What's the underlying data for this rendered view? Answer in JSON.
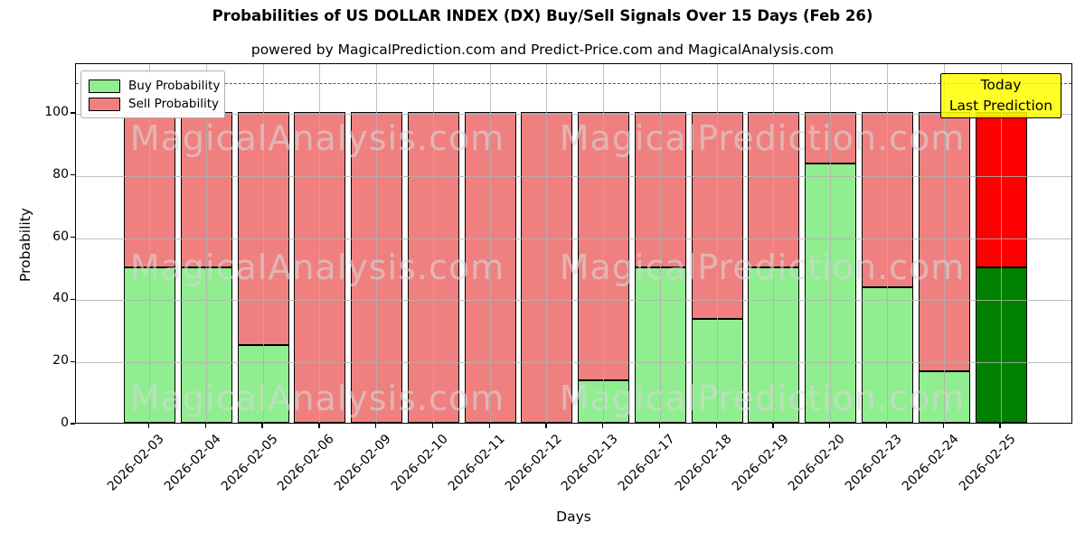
{
  "title": "Probabilities of US DOLLAR INDEX (DX) Buy/Sell Signals Over 15 Days (Feb 26)",
  "subtitle": "powered by MagicalPrediction.com and Predict-Price.com and MagicalAnalysis.com",
  "watermarks": {
    "left_text": "MagicalAnalysis.com",
    "right_text": "MagicalPrediction.com"
  },
  "legend": [
    {
      "label": "Buy Probability",
      "color": "#90ee90"
    },
    {
      "label": "Sell Probability",
      "color": "#f08080"
    }
  ],
  "annotation": {
    "line1": "Today",
    "line2": "Last Prediction",
    "bg_color": "#ffff00"
  },
  "chart_data": {
    "type": "bar",
    "stacked": true,
    "title": "Probabilities of US DOLLAR INDEX (DX) Buy/Sell Signals Over 15 Days (Feb 26)",
    "xlabel": "Days",
    "ylabel": "Probability",
    "ylim": [
      0,
      116
    ],
    "yticks": [
      0,
      20,
      40,
      60,
      80,
      100
    ],
    "grid": true,
    "dashed_line_y": 110,
    "legend_position": "upper left",
    "categories": [
      "2026-02-03",
      "2026-02-04",
      "2026-02-05",
      "2026-02-06",
      "2026-02-09",
      "2026-02-10",
      "2026-02-11",
      "2026-02-12",
      "2026-02-13",
      "2026-02-17",
      "2026-02-18",
      "2026-02-19",
      "2026-02-20",
      "2026-02-23",
      "2026-02-24",
      "2026-02-25"
    ],
    "series": [
      {
        "name": "Buy Probability",
        "color": "#90ee90",
        "today_color": "#008000",
        "values": [
          50,
          50,
          25,
          0,
          0,
          0,
          0,
          0,
          13.6,
          50,
          33.3,
          50,
          83.3,
          43.7,
          16.5,
          50
        ]
      },
      {
        "name": "Sell Probability",
        "color": "#f08080",
        "today_color": "#ff0000",
        "values": [
          50,
          50,
          75,
          100,
          100,
          100,
          100,
          100,
          86.4,
          50,
          66.7,
          50,
          16.7,
          56.3,
          83.5,
          50
        ]
      }
    ],
    "today_index": 15
  }
}
